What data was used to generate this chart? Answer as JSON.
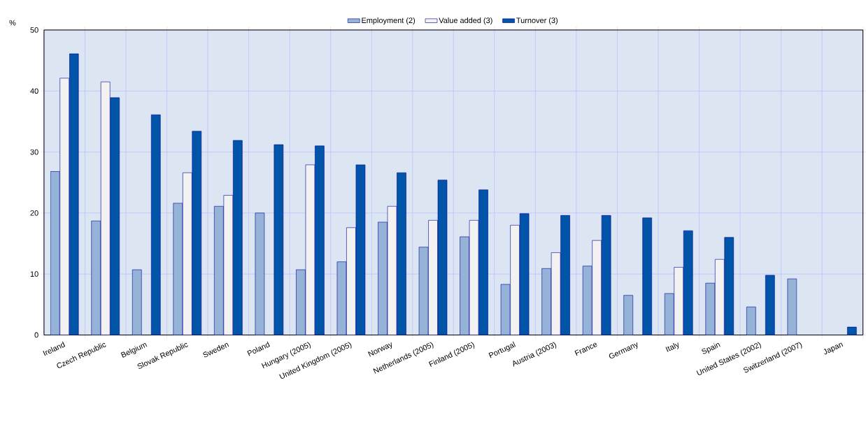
{
  "chart_data": {
    "type": "bar",
    "ylabel": "%",
    "categories": [
      "Ireland",
      "Czech Republic",
      "Belgium",
      "Slovak Republic",
      "Sweden",
      "Poland",
      "Hungary (2005)",
      "United Kingdom (2005)",
      "Norway",
      "Netherlands (2005)",
      "Finland (2005)",
      "Portugal",
      "Austria (2003)",
      "France",
      "Germany",
      "Italy",
      "Spain",
      "United States (2002)",
      "Switzerland (2007)",
      "Japan"
    ],
    "series": [
      {
        "name": "Employment (2)",
        "color": "#95b3d7",
        "values": [
          26.8,
          18.7,
          10.7,
          21.6,
          21.1,
          20.0,
          10.7,
          12.0,
          18.5,
          14.4,
          16.1,
          8.3,
          10.9,
          11.3,
          6.5,
          6.8,
          8.5,
          4.6,
          9.2,
          null
        ]
      },
      {
        "name": "Value added (3)",
        "color": "#f2f2f2",
        "values": [
          42.1,
          41.5,
          null,
          26.6,
          22.9,
          null,
          27.9,
          17.6,
          21.1,
          18.8,
          18.8,
          18.0,
          13.5,
          15.5,
          null,
          11.1,
          12.4,
          null,
          null,
          null
        ]
      },
      {
        "name": "Turnover (3)",
        "color": "#0055a8",
        "values": [
          46.1,
          38.9,
          36.1,
          33.4,
          31.9,
          31.2,
          31.0,
          27.9,
          26.6,
          25.4,
          23.8,
          19.9,
          19.6,
          19.6,
          19.2,
          17.1,
          16.0,
          9.8,
          null,
          1.3
        ]
      }
    ],
    "ylim": [
      0,
      50
    ],
    "yticks": [
      0,
      10,
      20,
      30,
      40,
      50
    ],
    "grid": true,
    "legend": "top"
  }
}
